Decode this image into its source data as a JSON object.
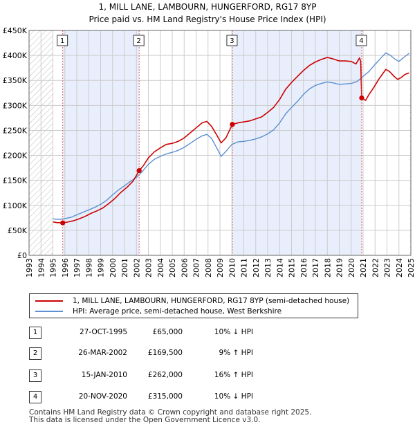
{
  "chart_data": {
    "type": "line",
    "title": "1, MILL LANE, LAMBOURN, HUNGERFORD, RG17 8YP",
    "subtitle": "Price paid vs. HM Land Registry's House Price Index (HPI)",
    "xlim": [
      1993.0,
      2025.0
    ],
    "ylim": [
      0,
      450000
    ],
    "x_ticks": [
      "1993",
      "1994",
      "1995",
      "1996",
      "1997",
      "1998",
      "1999",
      "2000",
      "2001",
      "2002",
      "2003",
      "2004",
      "2005",
      "2006",
      "2007",
      "2008",
      "2009",
      "2010",
      "2011",
      "2012",
      "2013",
      "2014",
      "2015",
      "2016",
      "2017",
      "2018",
      "2019",
      "2020",
      "2021",
      "2022",
      "2023",
      "2024",
      "2025"
    ],
    "y_ticks": [
      {
        "value": 0,
        "label": "£0"
      },
      {
        "value": 50000,
        "label": "£50K"
      },
      {
        "value": 100000,
        "label": "£100K"
      },
      {
        "value": 150000,
        "label": "£150K"
      },
      {
        "value": 200000,
        "label": "£200K"
      },
      {
        "value": 250000,
        "label": "£250K"
      },
      {
        "value": 300000,
        "label": "£300K"
      },
      {
        "value": 350000,
        "label": "£350K"
      },
      {
        "value": 400000,
        "label": "£400K"
      },
      {
        "value": 450000,
        "label": "£450K"
      }
    ],
    "no_data_before": 1995.0,
    "no_data_after": 2024.92,
    "colors": {
      "price": "#cc0000",
      "hpi": "#5b8fd0",
      "shade": "#e8eefb",
      "dashed": "#e06666",
      "grid": "#cccccc",
      "hatch": "#bbbbbb"
    },
    "series": [
      {
        "name": "1, MILL LANE, LAMBOURN, HUNGERFORD, RG17 8YP (semi-detached house)",
        "key": "price",
        "points": [
          [
            1995.0,
            67000
          ],
          [
            1995.3,
            65500
          ],
          [
            1995.82,
            65000
          ],
          [
            1996.2,
            66500
          ],
          [
            1996.7,
            69000
          ],
          [
            1997.2,
            73000
          ],
          [
            1997.7,
            78000
          ],
          [
            1998.2,
            84000
          ],
          [
            1998.7,
            89000
          ],
          [
            1999.2,
            95000
          ],
          [
            1999.7,
            104000
          ],
          [
            2000.2,
            114000
          ],
          [
            2000.7,
            126000
          ],
          [
            2001.2,
            136000
          ],
          [
            2001.7,
            148000
          ],
          [
            2002.0,
            160000
          ],
          [
            2002.23,
            169500
          ],
          [
            2002.6,
            180000
          ],
          [
            2003.0,
            195000
          ],
          [
            2003.5,
            207000
          ],
          [
            2004.0,
            215000
          ],
          [
            2004.5,
            222000
          ],
          [
            2005.0,
            224000
          ],
          [
            2005.5,
            228000
          ],
          [
            2006.0,
            235000
          ],
          [
            2006.5,
            245000
          ],
          [
            2007.0,
            255000
          ],
          [
            2007.5,
            265000
          ],
          [
            2007.9,
            268000
          ],
          [
            2008.3,
            258000
          ],
          [
            2008.8,
            238000
          ],
          [
            2009.1,
            225000
          ],
          [
            2009.5,
            235000
          ],
          [
            2009.9,
            255000
          ],
          [
            2010.04,
            262000
          ],
          [
            2010.5,
            265000
          ],
          [
            2011.0,
            267000
          ],
          [
            2011.5,
            269000
          ],
          [
            2012.0,
            273000
          ],
          [
            2012.5,
            277000
          ],
          [
            2013.0,
            286000
          ],
          [
            2013.5,
            296000
          ],
          [
            2014.0,
            312000
          ],
          [
            2014.5,
            332000
          ],
          [
            2015.0,
            346000
          ],
          [
            2015.5,
            358000
          ],
          [
            2016.0,
            370000
          ],
          [
            2016.5,
            380000
          ],
          [
            2017.0,
            387000
          ],
          [
            2017.5,
            392000
          ],
          [
            2018.0,
            396000
          ],
          [
            2018.5,
            393000
          ],
          [
            2019.0,
            389000
          ],
          [
            2019.5,
            389000
          ],
          [
            2020.0,
            388000
          ],
          [
            2020.4,
            383000
          ],
          [
            2020.7,
            395000
          ],
          [
            2020.8,
            388000
          ],
          [
            2020.88,
            315000
          ],
          [
            2021.2,
            310000
          ],
          [
            2021.5,
            322000
          ],
          [
            2021.9,
            336000
          ],
          [
            2022.3,
            352000
          ],
          [
            2022.6,
            362000
          ],
          [
            2022.9,
            372000
          ],
          [
            2023.2,
            368000
          ],
          [
            2023.6,
            358000
          ],
          [
            2023.9,
            352000
          ],
          [
            2024.2,
            356000
          ],
          [
            2024.5,
            362000
          ],
          [
            2024.85,
            365000
          ]
        ]
      },
      {
        "name": "HPI: Average price, semi-detached house, West Berkshire",
        "key": "hpi",
        "points": [
          [
            1995.0,
            73000
          ],
          [
            1995.5,
            72000
          ],
          [
            1996.0,
            73500
          ],
          [
            1996.5,
            76000
          ],
          [
            1997.0,
            81000
          ],
          [
            1997.5,
            86000
          ],
          [
            1998.0,
            91000
          ],
          [
            1998.5,
            96000
          ],
          [
            1999.0,
            102000
          ],
          [
            1999.5,
            110000
          ],
          [
            2000.0,
            121000
          ],
          [
            2000.5,
            131000
          ],
          [
            2001.0,
            139000
          ],
          [
            2001.5,
            148000
          ],
          [
            2002.0,
            156000
          ],
          [
            2002.5,
            168000
          ],
          [
            2003.0,
            182000
          ],
          [
            2003.5,
            192000
          ],
          [
            2004.0,
            198000
          ],
          [
            2004.5,
            203000
          ],
          [
            2005.0,
            206000
          ],
          [
            2005.5,
            210000
          ],
          [
            2006.0,
            216000
          ],
          [
            2006.5,
            224000
          ],
          [
            2007.0,
            232000
          ],
          [
            2007.5,
            239000
          ],
          [
            2007.9,
            242000
          ],
          [
            2008.3,
            234000
          ],
          [
            2008.8,
            212000
          ],
          [
            2009.1,
            198000
          ],
          [
            2009.5,
            208000
          ],
          [
            2010.0,
            222000
          ],
          [
            2010.5,
            227000
          ],
          [
            2011.0,
            228000
          ],
          [
            2011.5,
            230000
          ],
          [
            2012.0,
            233000
          ],
          [
            2012.5,
            237000
          ],
          [
            2013.0,
            243000
          ],
          [
            2013.5,
            251000
          ],
          [
            2014.0,
            265000
          ],
          [
            2014.5,
            283000
          ],
          [
            2015.0,
            296000
          ],
          [
            2015.5,
            308000
          ],
          [
            2016.0,
            322000
          ],
          [
            2016.5,
            333000
          ],
          [
            2017.0,
            340000
          ],
          [
            2017.5,
            344000
          ],
          [
            2018.0,
            347000
          ],
          [
            2018.5,
            345000
          ],
          [
            2019.0,
            342000
          ],
          [
            2019.5,
            343000
          ],
          [
            2020.0,
            344000
          ],
          [
            2020.5,
            348000
          ],
          [
            2021.0,
            358000
          ],
          [
            2021.5,
            368000
          ],
          [
            2022.0,
            382000
          ],
          [
            2022.5,
            395000
          ],
          [
            2022.9,
            405000
          ],
          [
            2023.3,
            400000
          ],
          [
            2023.7,
            392000
          ],
          [
            2024.0,
            388000
          ],
          [
            2024.4,
            396000
          ],
          [
            2024.85,
            404000
          ]
        ]
      }
    ],
    "sale_markers": [
      {
        "label": "1",
        "x": 1995.82,
        "y": 65000
      },
      {
        "label": "2",
        "x": 2002.23,
        "y": 169500
      },
      {
        "label": "3",
        "x": 2010.04,
        "y": 262000
      },
      {
        "label": "4",
        "x": 2020.88,
        "y": 315000
      }
    ]
  },
  "legend": {
    "price_label": "1, MILL LANE, LAMBOURN, HUNGERFORD, RG17 8YP (semi-detached house)",
    "hpi_label": "HPI: Average price, semi-detached house, West Berkshire"
  },
  "sales": [
    {
      "num": "1",
      "date": "27-OCT-1995",
      "price": "£65,000",
      "hpi": "10% ↓ HPI"
    },
    {
      "num": "2",
      "date": "26-MAR-2002",
      "price": "£169,500",
      "hpi": "9% ↑ HPI"
    },
    {
      "num": "3",
      "date": "15-JAN-2010",
      "price": "£262,000",
      "hpi": "16% ↑ HPI"
    },
    {
      "num": "4",
      "date": "20-NOV-2020",
      "price": "£315,000",
      "hpi": "10% ↓ HPI"
    }
  ],
  "footer": {
    "line1": "Contains HM Land Registry data © Crown copyright and database right 2025.",
    "line2": "This data is licensed under the Open Government Licence v3.0."
  }
}
